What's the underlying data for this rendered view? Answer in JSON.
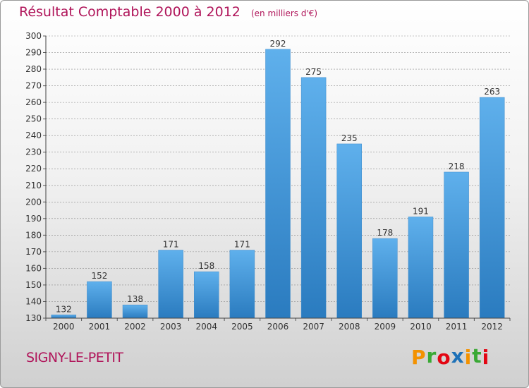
{
  "title": "Résultat Comptable 2000 à 2012",
  "subtitle": "(en milliers d'€)",
  "commune": "SIGNY-LE-PETIT",
  "logo": {
    "text": "Proxiti",
    "letters": [
      {
        "char": "P",
        "color": "#f39200"
      },
      {
        "char": "r",
        "color": "#3aa935"
      },
      {
        "char": "o",
        "color": "#e30613"
      },
      {
        "char": "x",
        "color": "#1d71b8"
      },
      {
        "char": "i",
        "color": "#f39200"
      },
      {
        "char": "t",
        "color": "#3aa935"
      },
      {
        "char": "i",
        "color": "#e30613"
      }
    ]
  },
  "colors": {
    "title": "#b0155a",
    "bar_light": "#5fb0ec",
    "bar_dark": "#2a7bbf",
    "grid": "#8a8a8a"
  },
  "chart_data": {
    "type": "bar",
    "categories": [
      "2000",
      "2001",
      "2002",
      "2003",
      "2004",
      "2005",
      "2006",
      "2007",
      "2008",
      "2009",
      "2010",
      "2011",
      "2012"
    ],
    "values": [
      132,
      152,
      138,
      171,
      158,
      171,
      292,
      275,
      235,
      178,
      191,
      218,
      263
    ],
    "ylim": [
      130,
      300
    ],
    "yticks": [
      130,
      140,
      150,
      160,
      170,
      180,
      190,
      200,
      210,
      220,
      230,
      240,
      250,
      260,
      270,
      280,
      290,
      300
    ],
    "grid": true,
    "data_labels": true
  }
}
